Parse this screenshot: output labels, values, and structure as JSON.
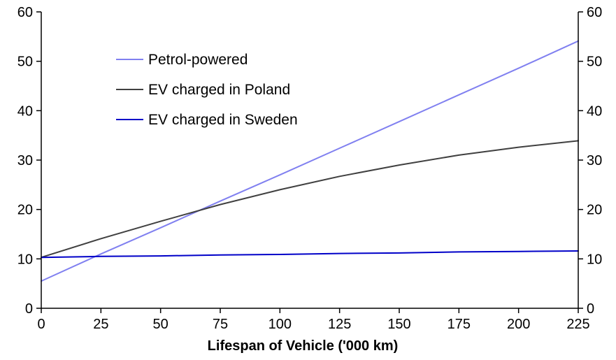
{
  "chart_data": {
    "type": "line",
    "title": "",
    "xlabel": "Lifespan of Vehicle ('000 km)",
    "ylabel": "",
    "xlim": [
      0,
      225
    ],
    "ylim": [
      0,
      60
    ],
    "x_ticks": [
      0,
      25,
      50,
      75,
      100,
      125,
      150,
      175,
      200,
      225
    ],
    "y_ticks": [
      0,
      10,
      20,
      30,
      40,
      50,
      60
    ],
    "grid": false,
    "legend_position": "top-left",
    "x": [
      0,
      25,
      50,
      75,
      100,
      125,
      150,
      175,
      200,
      225
    ],
    "series": [
      {
        "name": "Petrol-powered",
        "color": "#8080f0",
        "values": [
          5.5,
          11,
          16.3,
          21.7,
          27,
          32.4,
          37.8,
          43.2,
          48.6,
          54.1
        ]
      },
      {
        "name": "EV charged in Poland",
        "color": "#404040",
        "values": [
          10.3,
          14.1,
          17.6,
          21,
          24,
          26.7,
          29,
          31,
          32.6,
          33.9
        ]
      },
      {
        "name": "EV charged in Sweden",
        "color": "#0000c8",
        "values": [
          10.3,
          10.5,
          10.6,
          10.8,
          10.9,
          11.1,
          11.2,
          11.4,
          11.5,
          11.6
        ]
      }
    ]
  }
}
